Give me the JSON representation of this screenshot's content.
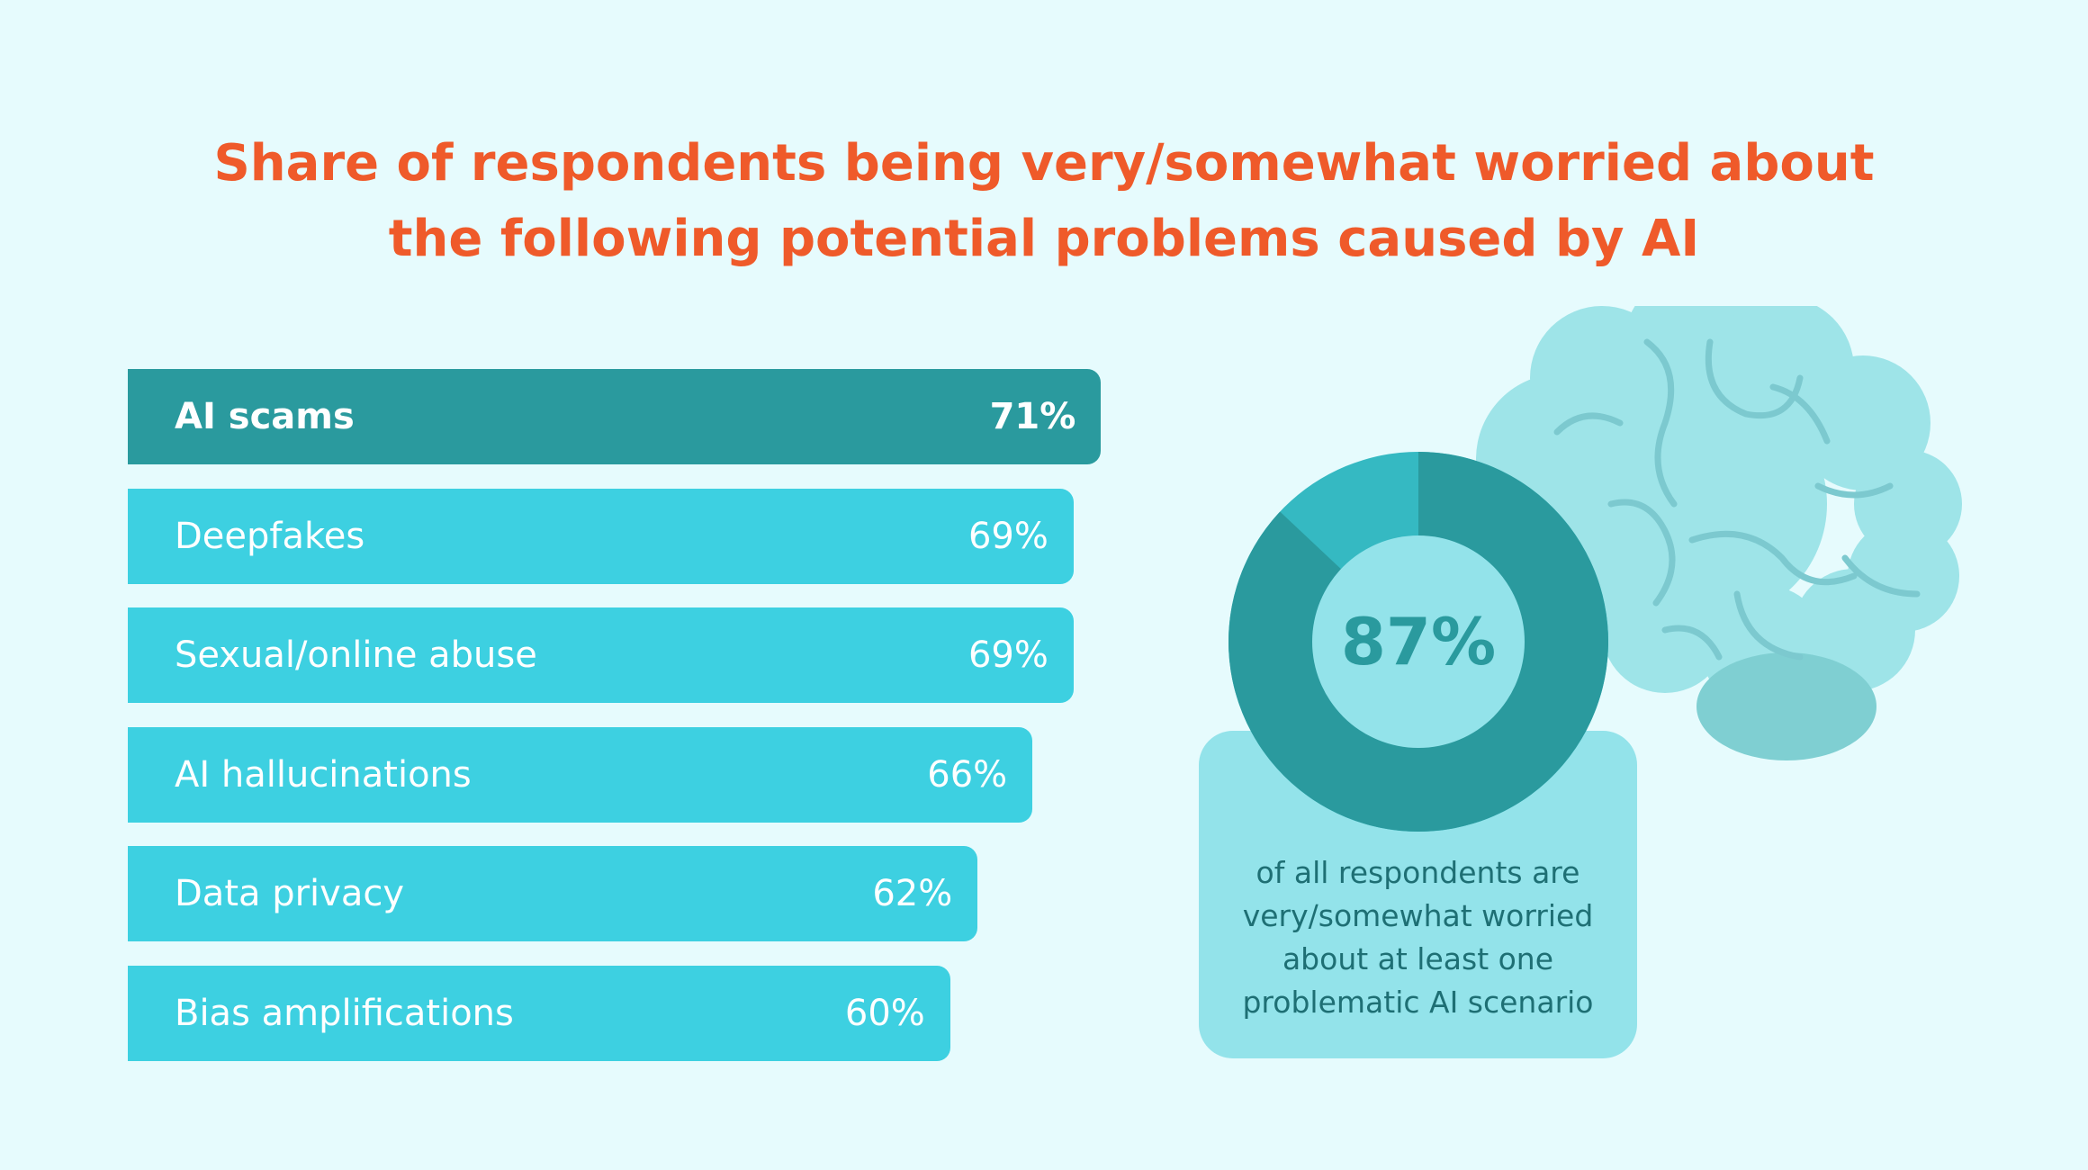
{
  "title_lines": [
    "Share of respondents being very/somewhat worried about",
    "the following potential problems caused by AI"
  ],
  "chart_data": [
    {
      "type": "bar",
      "orientation": "horizontal",
      "categories": [
        "AI scams",
        "Deepfakes",
        "Sexual/online abuse",
        "AI hallucinations",
        "Data privacy",
        "Bias amplifications"
      ],
      "values": [
        71,
        69,
        69,
        66,
        62,
        60
      ],
      "value_labels": [
        "71%",
        "69%",
        "69%",
        "66%",
        "62%",
        "60%"
      ],
      "highlighted_category": "AI scams",
      "unit": "%",
      "colors": {
        "highlight": "#2a9a9e",
        "default": "#3dd0e1"
      }
    },
    {
      "type": "pie",
      "variant": "donut",
      "value": 87,
      "center_label": "87%",
      "caption_lines": [
        "of all respondents are",
        "very/somewhat worried",
        "about at least one",
        "problematic AI scenario"
      ],
      "colors": {
        "value": "#2a9a9e",
        "remainder": "#35b9c2",
        "center": "#93e3ea"
      }
    }
  ],
  "decoration": {
    "illustration": "brain-icon"
  }
}
